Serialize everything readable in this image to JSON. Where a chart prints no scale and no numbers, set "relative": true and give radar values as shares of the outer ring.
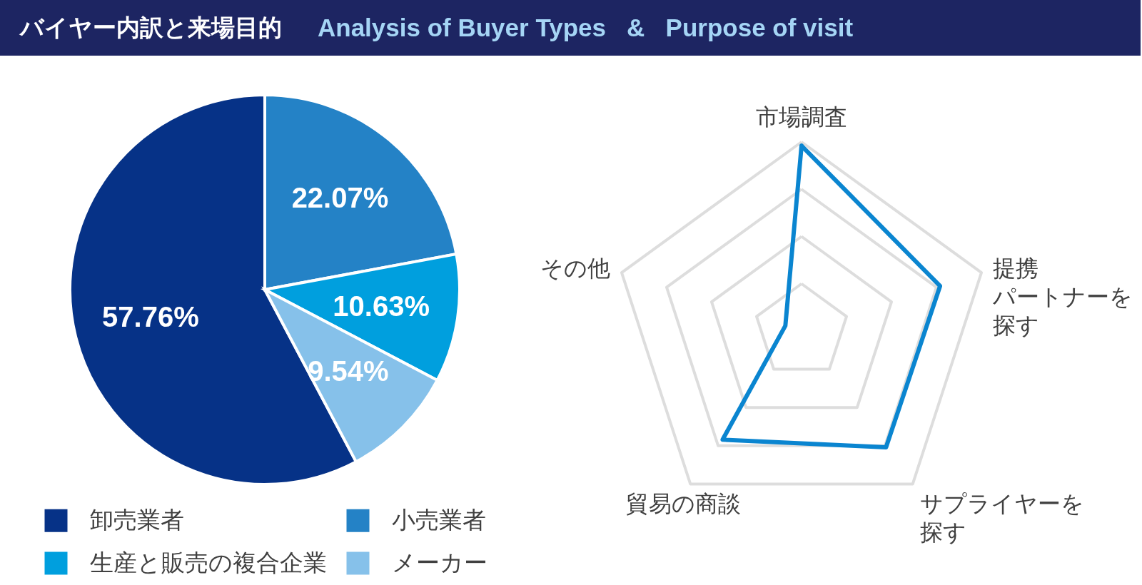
{
  "chart_data": [
    {
      "type": "pie",
      "title": "バイヤー内訳と来場目的",
      "subtitle": "Analysis of Buyer Types   &   Purpose of visit",
      "categories": [
        "卸売業者",
        "小売業者",
        "生産と販売の複合企業",
        "メーカー"
      ],
      "values": [
        57.76,
        22.07,
        10.63,
        9.54
      ],
      "colors": [
        "#063287",
        "#2482c6",
        "#009fde",
        "#86c1ea"
      ],
      "value_labels": [
        "57.76%",
        "22.07%",
        "10.63%",
        "9.54%"
      ],
      "legend": "bottom"
    },
    {
      "type": "radar",
      "categories": [
        "市場調査",
        "提携パートナーを探す",
        "サプライヤーを探す",
        "貿易の商談",
        "その他"
      ],
      "relative": true,
      "grid": true,
      "series": [
        {
          "color": "#0a85d0",
          "values": [
            0.98,
            0.77,
            0.76,
            0.71,
            0.09
          ]
        }
      ]
    }
  ]
}
